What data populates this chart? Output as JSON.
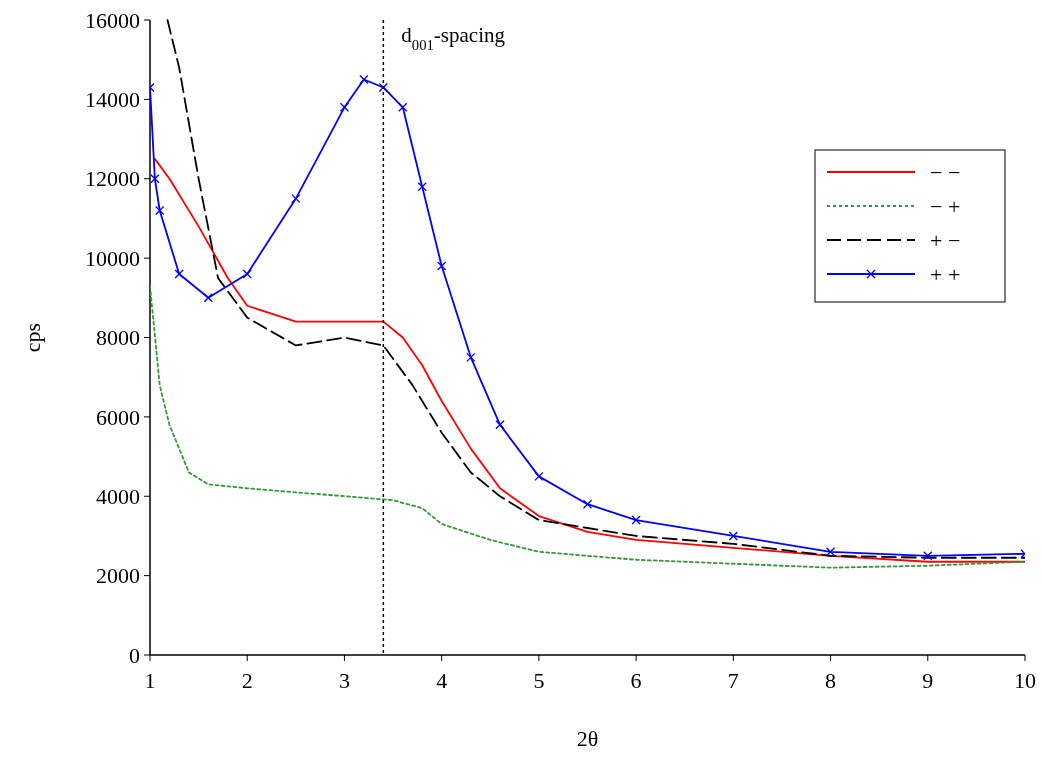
{
  "chart_data": {
    "type": "line",
    "xlabel": "2θ",
    "ylabel": "cps",
    "xlim": [
      1,
      10
    ],
    "xticks": [
      1,
      2,
      3,
      4,
      5,
      6,
      7,
      8,
      9,
      10
    ],
    "ylim": [
      0,
      16000
    ],
    "yticks": [
      0,
      2000,
      4000,
      6000,
      8000,
      10000,
      12000,
      14000,
      16000
    ],
    "grid": false,
    "legend": "top right",
    "marker": "none",
    "line_style": "solid",
    "ref_lines": [
      {
        "axis": "x",
        "value": 3.4,
        "label": "d$_{001}$-spacing",
        "line_style": "dotted",
        "color": "#000000"
      }
    ],
    "series": [
      {
        "name": "− −",
        "color": "#ff0000",
        "x": [
          1.05,
          1.2,
          1.5,
          1.8,
          2,
          2.5,
          3,
          3.4,
          3.6,
          3.8,
          4,
          4.3,
          4.6,
          5,
          5.5,
          6,
          7,
          8,
          9,
          10
        ],
        "values": [
          12500,
          12000,
          10800,
          9500,
          8800,
          8400,
          8400,
          8400,
          8000,
          7300,
          6400,
          5200,
          4200,
          3500,
          3100,
          2900,
          2700,
          2500,
          2350,
          2350
        ]
      },
      {
        "name": "− +",
        "color": "#339933",
        "line_style": "dotted",
        "x": [
          1,
          1.1,
          1.2,
          1.4,
          1.6,
          2,
          2.5,
          3,
          3.5,
          3.8,
          4,
          4.5,
          5,
          6,
          7,
          8,
          9,
          10
        ],
        "values": [
          9300,
          6800,
          5800,
          4600,
          4300,
          4200,
          4100,
          4000,
          3900,
          3700,
          3300,
          2900,
          2600,
          2400,
          2300,
          2200,
          2250,
          2350
        ]
      },
      {
        "name": "+ −",
        "color": "#000000",
        "line_style": "dashed",
        "x": [
          1.18,
          1.3,
          1.5,
          1.7,
          2,
          2.5,
          3,
          3.4,
          3.7,
          4,
          4.3,
          4.6,
          5,
          5.5,
          6,
          7,
          8,
          9,
          10
        ],
        "values": [
          16000,
          14800,
          12000,
          9500,
          8500,
          7800,
          8000,
          7800,
          6800,
          5600,
          4600,
          4000,
          3400,
          3200,
          3000,
          2800,
          2500,
          2450,
          2450
        ]
      },
      {
        "name": "+ +",
        "color": "#0000ff",
        "marker": "cross",
        "x": [
          1,
          1.05,
          1.1,
          1.3,
          1.6,
          2,
          2.5,
          3,
          3.2,
          3.4,
          3.6,
          3.8,
          4,
          4.3,
          4.6,
          5,
          5.5,
          6,
          7,
          8,
          9,
          10
        ],
        "values": [
          14300,
          12000,
          11200,
          9600,
          9000,
          9600,
          11500,
          13800,
          14500,
          14300,
          13800,
          11800,
          9800,
          7500,
          5800,
          4500,
          3800,
          3400,
          3000,
          2600,
          2500,
          2550
        ]
      }
    ]
  }
}
